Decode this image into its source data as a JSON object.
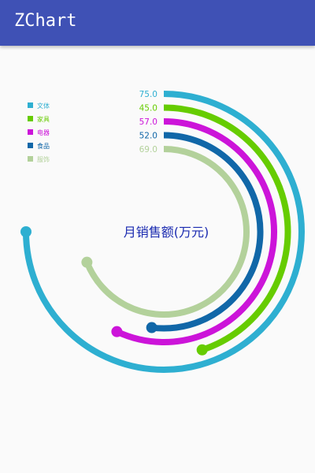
{
  "app": {
    "title": "ZChart"
  },
  "chart_data": {
    "type": "radial-bar",
    "title": "月销售额(万元)",
    "max": 100,
    "series": [
      {
        "name": "文体",
        "value": 75.0,
        "label": "75.0",
        "color": "#2eafd1"
      },
      {
        "name": "家具",
        "value": 45.0,
        "label": "45.0",
        "color": "#66cc00"
      },
      {
        "name": "电器",
        "value": 57.0,
        "label": "57.0",
        "color": "#cc14d9"
      },
      {
        "name": "食品",
        "value": 52.0,
        "label": "52.0",
        "color": "#1167a8"
      },
      {
        "name": "服饰",
        "value": 69.0,
        "label": "69.0",
        "color": "#b3d19b"
      }
    ],
    "legend_position": "top-left"
  }
}
